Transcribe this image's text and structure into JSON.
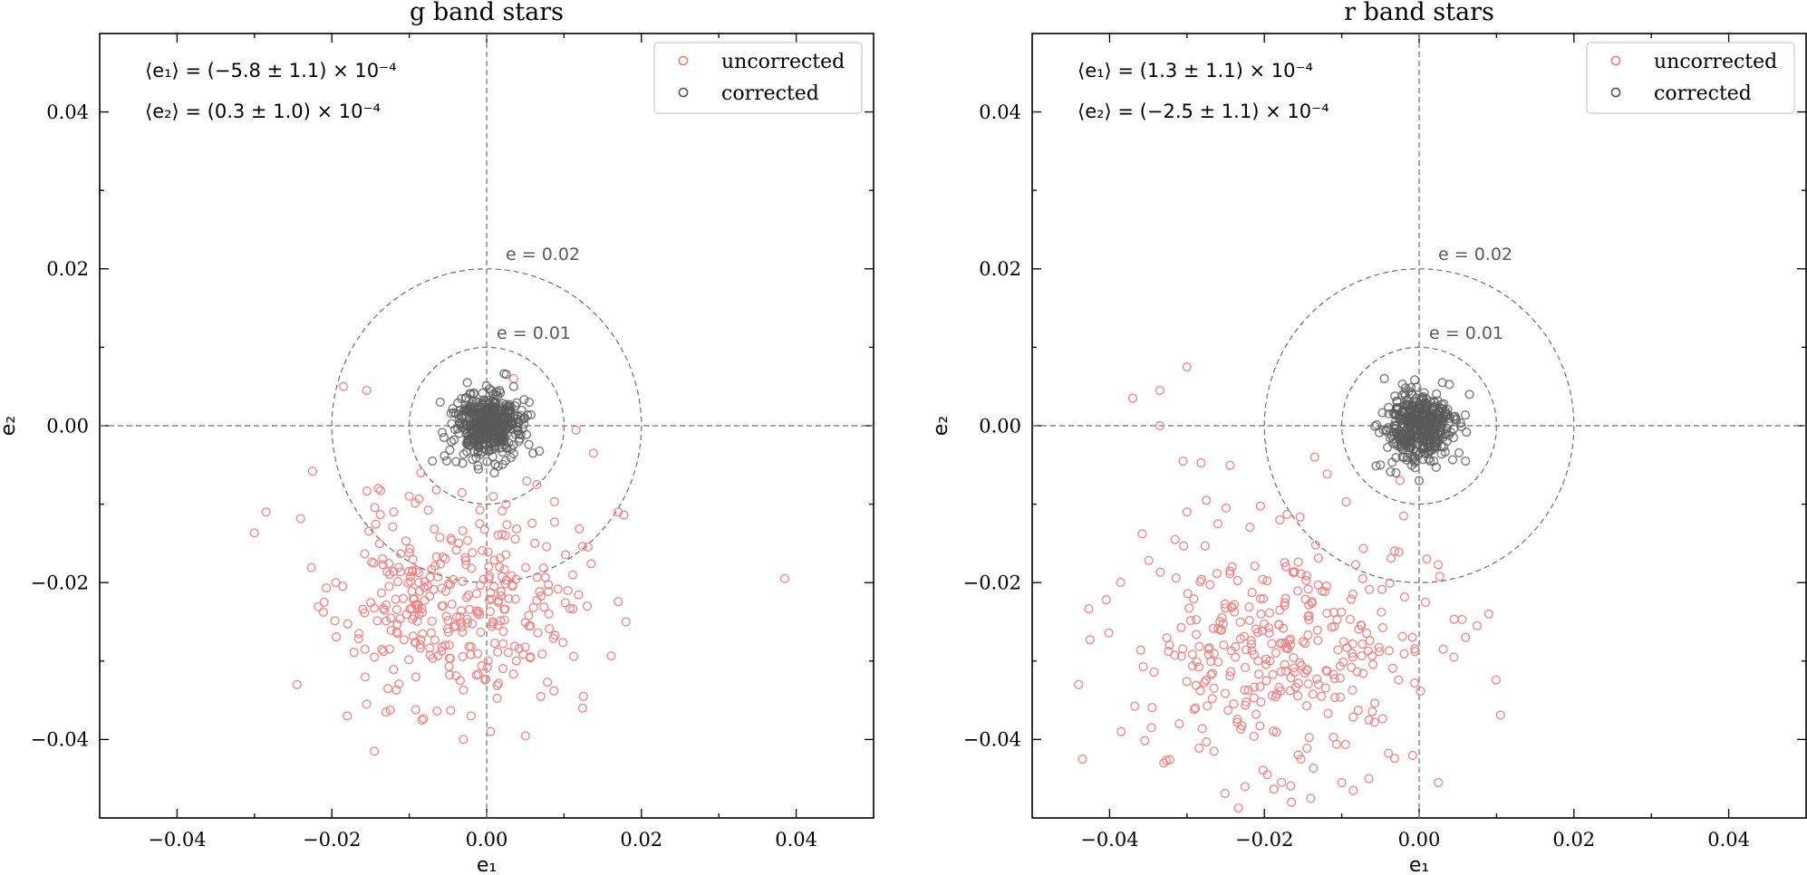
{
  "chart_data": [
    {
      "type": "scatter",
      "title": "g band stars",
      "xlabel": "e₁",
      "ylabel": "e₂",
      "xlim": [
        -0.05,
        0.05
      ],
      "ylim": [
        -0.05,
        0.05
      ],
      "xticks": [
        "−0.04",
        "−0.02",
        "0.00",
        "0.02",
        "0.04"
      ],
      "yticks": [
        "−0.04",
        "−0.02",
        "0.00",
        "0.02",
        "0.04"
      ],
      "legend_position": "top-right",
      "stats": {
        "e1": "⟨e₁⟩ = (−5.8 ± 1.1) × 10⁻⁴",
        "e2": "⟨e₂⟩ = (0.3 ± 1.0) × 10⁻⁴"
      },
      "circles": [
        {
          "radius": 0.02,
          "label": "e = 0.02"
        },
        {
          "radius": 0.01,
          "label": "e = 0.01"
        }
      ],
      "series": [
        {
          "name": "uncorrected",
          "color": "#f08080",
          "points": [
            [
              -0.0185,
              0.005
            ],
            [
              -0.0155,
              0.0045
            ],
            [
              -0.0225,
              -0.0058
            ],
            [
              -0.0285,
              -0.011
            ],
            [
              -0.0245,
              -0.033
            ],
            [
              -0.018,
              -0.037
            ],
            [
              -0.0155,
              -0.0355
            ],
            [
              -0.013,
              -0.0365
            ],
            [
              0.0385,
              -0.0195
            ],
            [
              0.018,
              -0.025
            ],
            [
              0.017,
              -0.011
            ],
            [
              0.0125,
              -0.0345
            ],
            [
              0.0065,
              -0.0075
            ],
            [
              0.0035,
              0.006
            ],
            [
              0.0025,
              -0.01
            ],
            [
              -0.0085,
              -0.006
            ],
            [
              -0.01,
              -0.009
            ],
            [
              -0.012,
              -0.011
            ],
            [
              -0.014,
              -0.008
            ],
            [
              0.0105,
              -0.021
            ],
            [
              0.013,
              -0.023
            ],
            [
              0.0005,
              -0.039
            ],
            [
              -0.003,
              -0.04
            ],
            [
              0.007,
              -0.0345
            ],
            [
              -0.002,
              -0.037
            ],
            [
              -0.021,
              -0.0225
            ],
            [
              -0.0195,
              -0.02
            ],
            [
              -0.0165,
              -0.0265
            ],
            [
              -0.0145,
              -0.0295
            ]
          ],
          "cluster": {
            "n": 320,
            "center": [
              -0.004,
              -0.023
            ],
            "spread": [
              0.0075,
              0.0065
            ],
            "seed": 11
          }
        },
        {
          "name": "corrected",
          "color": "#595959",
          "points": [
            [
              -0.007,
              -0.0045
            ],
            [
              0.006,
              -0.0035
            ],
            [
              0.0035,
              0.005
            ],
            [
              -0.006,
              0.003
            ],
            [
              0.001,
              -0.006
            ],
            [
              -0.0025,
              0.0055
            ],
            [
              0.0055,
              0.003
            ],
            [
              -0.0055,
              -0.0015
            ]
          ],
          "cluster": {
            "n": 450,
            "center": [
              0.0,
              0.0
            ],
            "spread": [
              0.002,
              0.002
            ],
            "seed": 23
          }
        }
      ]
    },
    {
      "type": "scatter",
      "title": "r band stars",
      "xlabel": "e₁",
      "ylabel": "e₂",
      "xlim": [
        -0.05,
        0.05
      ],
      "ylim": [
        -0.05,
        0.05
      ],
      "xticks": [
        "−0.04",
        "−0.02",
        "0.00",
        "0.02",
        "0.04"
      ],
      "yticks": [
        "−0.04",
        "−0.02",
        "0.00",
        "0.02",
        "0.04"
      ],
      "legend_position": "top-right",
      "stats": {
        "e1": "⟨e₁⟩ = (1.3 ± 1.1) × 10⁻⁴",
        "e2": "⟨e₂⟩ = (−2.5 ± 1.1) × 10⁻⁴"
      },
      "circles": [
        {
          "radius": 0.02,
          "label": "e = 0.02"
        },
        {
          "radius": 0.01,
          "label": "e = 0.01"
        }
      ],
      "series": [
        {
          "name": "uncorrected",
          "color": "#f08080",
          "points": [
            [
              -0.037,
              0.0035
            ],
            [
              -0.0335,
              0.0045
            ],
            [
              -0.03,
              0.0075
            ],
            [
              -0.0335,
              0.0
            ],
            [
              -0.0305,
              -0.0045
            ],
            [
              -0.0435,
              -0.0425
            ],
            [
              -0.044,
              -0.033
            ],
            [
              -0.0385,
              -0.039
            ],
            [
              -0.033,
              -0.043
            ],
            [
              -0.031,
              -0.038
            ],
            [
              -0.002,
              -0.0115
            ],
            [
              0.001,
              -0.017
            ],
            [
              0.0025,
              -0.0455
            ],
            [
              0.009,
              -0.024
            ],
            [
              0.0075,
              -0.0255
            ],
            [
              -0.0065,
              -0.045
            ],
            [
              -0.0085,
              -0.0465
            ],
            [
              -0.01,
              -0.0455
            ],
            [
              -0.014,
              -0.0475
            ],
            [
              -0.0165,
              -0.048
            ],
            [
              -0.0225,
              -0.046
            ],
            [
              -0.0265,
              -0.0415
            ],
            [
              -0.0275,
              -0.0095
            ],
            [
              -0.018,
              -0.012
            ],
            [
              -0.0135,
              -0.004
            ],
            [
              -0.026,
              -0.0125
            ],
            [
              -0.03,
              -0.011
            ],
            [
              0.006,
              -0.027
            ],
            [
              0.0045,
              -0.0295
            ]
          ],
          "cluster": {
            "n": 320,
            "center": [
              -0.017,
              -0.028
            ],
            "spread": [
              0.0095,
              0.0075
            ],
            "seed": 37
          }
        },
        {
          "name": "corrected",
          "color": "#595959",
          "points": [
            [
              -0.0045,
              0.006
            ],
            [
              0.0065,
              0.004
            ],
            [
              -0.005,
              -0.005
            ],
            [
              0.006,
              -0.0045
            ],
            [
              0.0,
              -0.007
            ],
            [
              -0.003,
              -0.006
            ],
            [
              0.003,
              0.0055
            ]
          ],
          "cluster": {
            "n": 450,
            "center": [
              0.0,
              -0.0003
            ],
            "spread": [
              0.0021,
              0.0021
            ],
            "seed": 51
          }
        }
      ]
    }
  ]
}
